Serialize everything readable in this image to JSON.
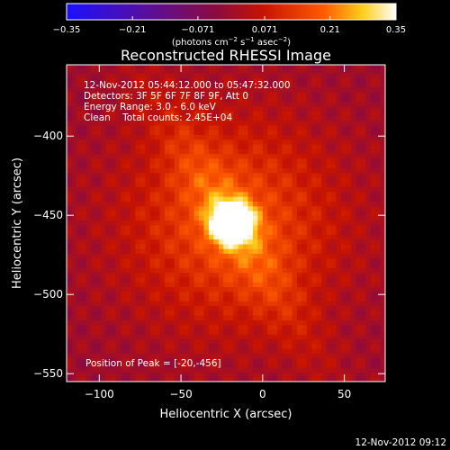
{
  "chart_data": {
    "type": "heatmap",
    "title": "Reconstructed RHESSI Image",
    "xlabel": "Heliocentric X (arcsec)",
    "ylabel": "Heliocentric Y (arcsec)",
    "xlim": [
      -120,
      75
    ],
    "ylim": [
      -555,
      -355
    ],
    "xticks": [
      -100,
      -50,
      0,
      50
    ],
    "yticks": [
      -400,
      -450,
      -500,
      -550
    ],
    "peak": [
      -20,
      -456
    ],
    "colorbar": {
      "label_main": "(photons cm",
      "label_exp1": "−2",
      "label_mid": " s",
      "label_exp2": "−1",
      "label_end": " asec",
      "label_exp3": "−2",
      "label_close": ")",
      "min": -0.35,
      "max": 0.35,
      "tick_labels": [
        "−0.35",
        "−0.21",
        "−0.071",
        "0.071",
        "0.21",
        "0.35"
      ],
      "tick_values": [
        -0.35,
        -0.21,
        -0.071,
        0.071,
        0.21,
        0.35
      ],
      "colors": [
        "#1a10ff",
        "#5a0f9a",
        "#8a0a40",
        "#c81400",
        "#ff5a00",
        "#ffcf1a",
        "#ffffff"
      ]
    },
    "info_lines": [
      "12-Nov-2012 05:44:12.000 to 05:47:32.000",
      "Detectors: 3F 5F 6F 7F 8F 9F, Att 0",
      "Energy Range: 3.0 - 6.0 keV",
      "Clean    Total counts: 2.45E+04"
    ],
    "peak_label": "Position of Peak = [-20,-456]",
    "timestamp": "12-Nov-2012 09:12"
  }
}
